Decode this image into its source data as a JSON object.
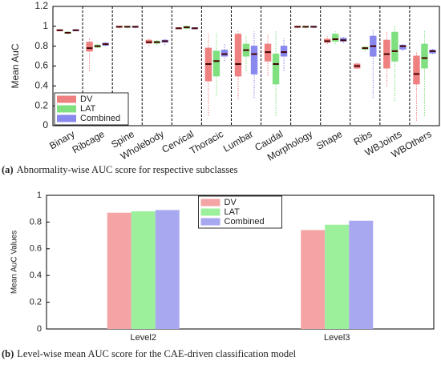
{
  "chart_data": [
    {
      "type": "box",
      "label": "(a)",
      "caption": "Abnormality-wise AUC score for respective subclasses",
      "ylabel": "Mean AuC",
      "ylim": [
        0,
        1.2
      ],
      "yticks": [
        0,
        0.2,
        0.4,
        0.6,
        0.8,
        1,
        1.2
      ],
      "legend": "lower left",
      "categories": [
        "Binary",
        "Ribcage",
        "Spine",
        "Wholebody",
        "Cervical",
        "Thoracic",
        "Lumbar",
        "Caudal",
        "Morphology",
        "Shape",
        "Ribs",
        "WBJoints",
        "WBOthers"
      ],
      "series": [
        {
          "name": "DV",
          "color": "#ee8080",
          "values": [
            [
              0.95,
              0.955,
              0.96,
              0.965,
              0.97
            ],
            [
              0.55,
              0.75,
              0.78,
              0.84,
              0.88
            ],
            [
              0.98,
              0.99,
              0.995,
              1,
              1
            ],
            [
              0.8,
              0.83,
              0.84,
              0.86,
              0.88
            ],
            [
              0.97,
              0.975,
              0.98,
              0.985,
              0.99
            ],
            [
              0.1,
              0.45,
              0.62,
              0.78,
              0.93
            ],
            [
              0.27,
              0.5,
              0.62,
              0.92,
              0.95
            ],
            [
              0.5,
              0.65,
              0.74,
              0.82,
              0.92
            ],
            [
              0.98,
              0.99,
              0.995,
              1,
              1
            ],
            [
              0.82,
              0.84,
              0.85,
              0.87,
              0.9
            ],
            [
              0.57,
              0.58,
              0.6,
              0.62,
              0.64
            ],
            [
              0.4,
              0.58,
              0.72,
              0.86,
              0.95
            ],
            [
              0.05,
              0.42,
              0.52,
              0.7,
              0.75
            ]
          ]
        },
        {
          "name": "LAT",
          "color": "#80e080",
          "values": [
            [
              0.92,
              0.93,
              0.935,
              0.94,
              0.95
            ],
            [
              0.78,
              0.79,
              0.8,
              0.81,
              0.82
            ],
            [
              0.98,
              0.99,
              0.995,
              1,
              1
            ],
            [
              0.81,
              0.83,
              0.84,
              0.85,
              0.87
            ],
            [
              0.97,
              0.98,
              0.99,
              1,
              1
            ],
            [
              0.3,
              0.5,
              0.65,
              0.75,
              0.93
            ],
            [
              0.55,
              0.7,
              0.76,
              0.82,
              0.9
            ],
            [
              0.1,
              0.42,
              0.62,
              0.72,
              0.95
            ],
            [
              0.98,
              0.99,
              0.995,
              1,
              1
            ],
            [
              0.82,
              0.85,
              0.87,
              0.92,
              0.95
            ],
            [
              0.75,
              0.77,
              0.78,
              0.79,
              0.8
            ],
            [
              0.25,
              0.65,
              0.75,
              0.94,
              1
            ],
            [
              0.1,
              0.58,
              0.68,
              0.82,
              0.95
            ]
          ]
        },
        {
          "name": "Combined",
          "color": "#8888ee",
          "values": [
            [
              0.95,
              0.955,
              0.96,
              0.965,
              0.97
            ],
            [
              0.8,
              0.81,
              0.82,
              0.83,
              0.84
            ],
            [
              0.98,
              0.99,
              0.995,
              1,
              1
            ],
            [
              0.81,
              0.84,
              0.85,
              0.86,
              0.88
            ],
            [
              0.97,
              0.975,
              0.98,
              0.985,
              0.99
            ],
            [
              0.65,
              0.7,
              0.72,
              0.76,
              0.82
            ],
            [
              0.28,
              0.52,
              0.72,
              0.8,
              0.95
            ],
            [
              0.55,
              0.7,
              0.74,
              0.8,
              0.88
            ],
            [
              0.98,
              0.99,
              0.995,
              1,
              1
            ],
            [
              0.83,
              0.85,
              0.86,
              0.88,
              0.9
            ],
            [
              0.28,
              0.7,
              0.8,
              0.9,
              0.97
            ],
            [
              0.75,
              0.77,
              0.8,
              0.81,
              0.82
            ],
            [
              0.72,
              0.73,
              0.75,
              0.76,
              0.78
            ]
          ]
        }
      ]
    },
    {
      "type": "bar",
      "label": "(b)",
      "caption": "Level-wise mean AUC score for the CAE-driven classification model",
      "ylabel": "Mean AuC Values",
      "ylim": [
        0,
        1
      ],
      "yticks": [
        0,
        0.2,
        0.4,
        0.6,
        0.8,
        1
      ],
      "legend": "upper center",
      "categories": [
        "Level2",
        "Level3"
      ],
      "series": [
        {
          "name": "DV",
          "color": "#f4a4a4",
          "values": [
            0.87,
            0.74
          ]
        },
        {
          "name": "LAT",
          "color": "#9cf09c",
          "values": [
            0.88,
            0.78
          ]
        },
        {
          "name": "Combined",
          "color": "#a8a8f0",
          "values": [
            0.89,
            0.81
          ]
        }
      ]
    }
  ]
}
